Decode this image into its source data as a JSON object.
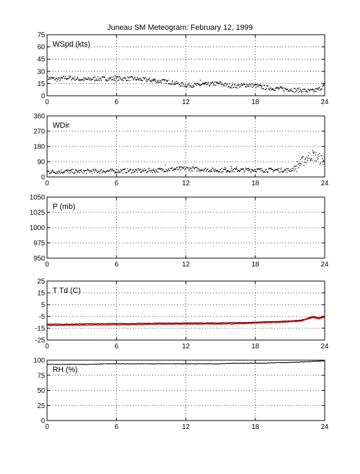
{
  "title": "Juneau SM Meteogram:   February 12, 1999",
  "colors": {
    "axis": "#000000",
    "grid": "#000000",
    "temperature": "#000000",
    "dewpoint": "#ff0000",
    "background": "#ffffff"
  },
  "chart_data": [
    {
      "id": "wspd",
      "type": "scatter",
      "label": "WSpd (kts)",
      "xlim": [
        0,
        24
      ],
      "ylim": [
        0,
        75
      ],
      "xticks": [
        0,
        6,
        12,
        18,
        24
      ],
      "yticks": [
        0,
        15,
        30,
        45,
        60,
        75
      ],
      "grid": true,
      "series": [
        {
          "x": [
            0.0,
            0.5,
            1.0,
            1.5,
            2.0,
            2.5,
            3.0,
            3.5,
            4.0,
            4.5,
            5.0,
            5.5,
            6.0,
            6.5,
            7.0,
            7.5,
            8.0,
            8.5,
            9.0,
            9.5,
            10.0,
            10.5,
            11.0,
            11.5,
            12.0,
            12.5,
            13.0,
            13.5,
            14.0,
            14.5,
            15.0,
            15.5,
            16.0,
            16.5,
            17.0,
            17.5,
            18.0,
            18.5,
            19.0,
            19.5,
            20.0,
            20.5,
            21.0,
            21.5,
            22.0,
            22.5,
            23.0,
            23.5,
            24.0
          ],
          "y": [
            22,
            21,
            20,
            22,
            22,
            21,
            20,
            20,
            21,
            21,
            21,
            21,
            21,
            21,
            21,
            21,
            20,
            20,
            19,
            18,
            18,
            17,
            16,
            14,
            13,
            13,
            13,
            14,
            14,
            15,
            15,
            13,
            12,
            12,
            13,
            13,
            12,
            11,
            10,
            9,
            9,
            8,
            8,
            7,
            7,
            6,
            6,
            8,
            13
          ]
        }
      ]
    },
    {
      "id": "wdir",
      "type": "scatter",
      "label": "WDir",
      "xlim": [
        0,
        24
      ],
      "ylim": [
        0,
        360
      ],
      "xticks": [
        0,
        6,
        12,
        18,
        24
      ],
      "yticks": [
        0,
        90,
        180,
        270,
        360
      ],
      "grid": true,
      "series": [
        {
          "x": [
            0.0,
            0.5,
            1.0,
            1.5,
            2.0,
            2.5,
            3.0,
            3.5,
            4.0,
            4.5,
            5.0,
            5.5,
            6.0,
            6.5,
            7.0,
            7.5,
            8.0,
            8.5,
            9.0,
            9.5,
            10.0,
            10.5,
            11.0,
            11.5,
            12.0,
            12.5,
            13.0,
            13.5,
            14.0,
            14.5,
            15.0,
            15.5,
            16.0,
            16.5,
            17.0,
            17.5,
            18.0,
            18.5,
            19.0,
            19.5,
            20.0,
            20.5,
            21.0,
            21.5,
            22.0,
            22.5,
            23.0,
            23.5,
            24.0
          ],
          "y": [
            32,
            31,
            32,
            33,
            33,
            32,
            33,
            34,
            34,
            34,
            35,
            35,
            35,
            36,
            37,
            37,
            37,
            38,
            39,
            40,
            42,
            44,
            46,
            48,
            50,
            48,
            46,
            44,
            42,
            40,
            40,
            40,
            40,
            41,
            41,
            42,
            42,
            40,
            40,
            41,
            41,
            40,
            40,
            55,
            85,
            115,
            130,
            110,
            95
          ]
        }
      ]
    },
    {
      "id": "pressure",
      "type": "line",
      "label": "P (mb)",
      "xlim": [
        0,
        24
      ],
      "ylim": [
        950,
        1050
      ],
      "xticks": [
        0,
        6,
        12,
        18,
        24
      ],
      "yticks": [
        950,
        975,
        1000,
        1025,
        1050
      ],
      "grid": true,
      "series": []
    },
    {
      "id": "temp",
      "type": "line",
      "label": "T Td (C)",
      "xlim": [
        0,
        24
      ],
      "ylim": [
        -25,
        25
      ],
      "xticks": [
        0,
        6,
        12,
        18,
        24
      ],
      "yticks": [
        -25,
        -15,
        -5,
        5,
        15,
        25
      ],
      "grid": true,
      "series": [
        {
          "x": [
            0,
            1,
            2,
            3,
            4,
            5,
            6,
            7,
            8,
            9,
            10,
            11,
            12,
            13,
            14,
            15,
            16,
            17,
            18,
            19,
            20,
            21,
            22,
            22.5,
            23,
            23.5,
            24
          ],
          "y": [
            -11.5,
            -11.5,
            -11.5,
            -11.3,
            -11.2,
            -11.2,
            -11.0,
            -11.0,
            -10.9,
            -10.8,
            -10.6,
            -10.6,
            -10.5,
            -10.5,
            -10.5,
            -10.5,
            -10.3,
            -10.2,
            -9.8,
            -9.5,
            -9.3,
            -8.8,
            -8.2,
            -6.5,
            -5.0,
            -6.0,
            -4.8
          ],
          "color": "#000000"
        },
        {
          "x": [
            0,
            1,
            2,
            3,
            4,
            5,
            6,
            7,
            8,
            9,
            10,
            11,
            12,
            13,
            14,
            15,
            16,
            17,
            18,
            19,
            20,
            21,
            22,
            22.5,
            23,
            23.5,
            24
          ],
          "y": [
            -12.5,
            -12.5,
            -12.4,
            -12.3,
            -12.2,
            -12.2,
            -12.0,
            -12.0,
            -11.8,
            -11.6,
            -11.5,
            -11.5,
            -11.4,
            -11.4,
            -11.4,
            -11.3,
            -11.2,
            -11.0,
            -10.7,
            -10.3,
            -10.0,
            -9.5,
            -8.8,
            -7.2,
            -6.0,
            -7.0,
            -5.5
          ],
          "color": "#ff0000"
        }
      ]
    },
    {
      "id": "rh",
      "type": "line",
      "label": "RH (%)",
      "xlim": [
        0,
        24
      ],
      "ylim": [
        0,
        100
      ],
      "xticks": [
        0,
        6,
        12,
        18,
        24
      ],
      "yticks": [
        0,
        25,
        50,
        75,
        100
      ],
      "grid": true,
      "series": [
        {
          "x": [
            0,
            1,
            2,
            3,
            4,
            5,
            6,
            7,
            8,
            9,
            10,
            11,
            12,
            13,
            14,
            15,
            16,
            17,
            18,
            19,
            20,
            21,
            22,
            23,
            24
          ],
          "y": [
            93,
            93,
            93,
            93,
            93,
            94,
            94,
            94,
            94,
            94,
            94,
            94,
            94,
            94,
            94,
            94,
            95,
            95,
            95,
            95,
            96,
            96,
            97,
            98,
            99
          ],
          "color": "#000000"
        }
      ]
    }
  ]
}
